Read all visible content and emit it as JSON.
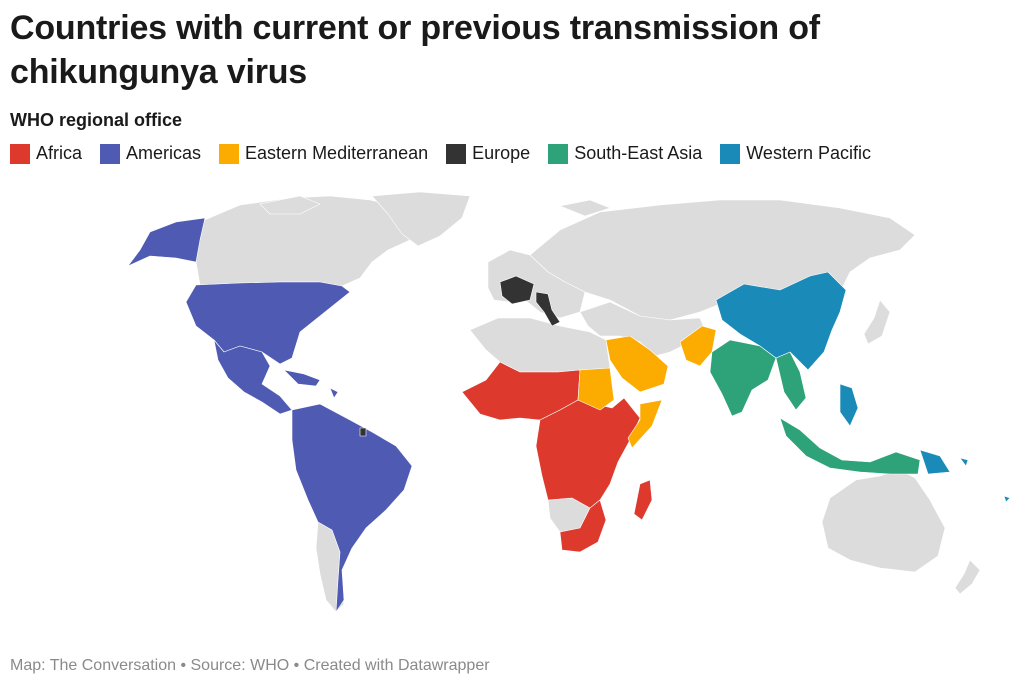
{
  "title": "Countries with current or previous transmission of chikungunya virus",
  "legend": {
    "title": "WHO regional office",
    "items": [
      {
        "label": "Africa",
        "color": "#dd3a2d"
      },
      {
        "label": "Americas",
        "color": "#4f5bb2"
      },
      {
        "label": "Eastern Mediterranean",
        "color": "#fcab01"
      },
      {
        "label": "Europe",
        "color": "#333333"
      },
      {
        "label": "South-East Asia",
        "color": "#2ea379"
      },
      {
        "label": "Western Pacific",
        "color": "#1a8bb8"
      }
    ]
  },
  "colors": {
    "no_data": "#dcdcdc"
  },
  "footer": "Map: The Conversation • Source: WHO • Created with Datawrapper"
}
